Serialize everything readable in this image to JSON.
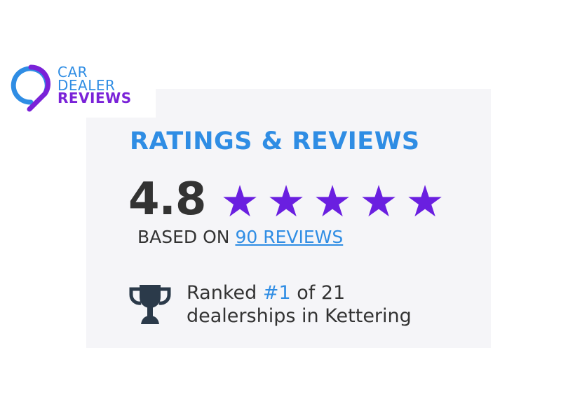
{
  "logo": {
    "line1": "CAR",
    "line2": "DEALER",
    "line3": "REVIEWS"
  },
  "widget": {
    "title": "RATINGS & REVIEWS",
    "score": "4.8",
    "stars": 5,
    "based_prefix": "BASED ON",
    "reviews_link": "90 REVIEWS",
    "rank_prefix": "Ranked",
    "rank_value": "#1",
    "rank_suffix": "of 21",
    "rank_line2": "dealerships in Kettering"
  },
  "colors": {
    "blue": "#2f8de4",
    "purple": "#6a1fe0",
    "text": "#333333",
    "card": "#f5f5f8"
  }
}
